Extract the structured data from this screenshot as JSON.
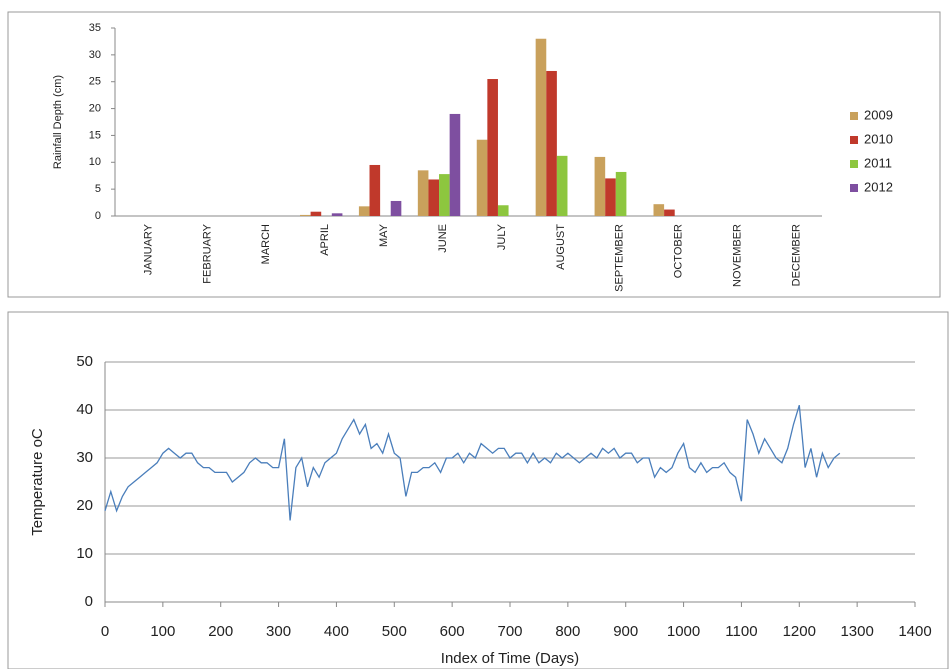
{
  "chart_data": [
    {
      "type": "bar",
      "ylabel": "Rainfall Depth (cm)",
      "categories": [
        "JANUARY",
        "FEBRUARY",
        "MARCH",
        "APRIL",
        "MAY",
        "JUNE",
        "JULY",
        "AUGUST",
        "SEPTEMBER",
        "OCTOBER",
        "NOVEMBER",
        "DECEMBER"
      ],
      "series": [
        {
          "name": "2009",
          "color": "#c9a15c",
          "values": [
            0,
            0,
            0,
            0.2,
            1.8,
            8.5,
            14.2,
            33,
            11,
            2.2,
            0,
            0
          ]
        },
        {
          "name": "2010",
          "color": "#c0392b",
          "values": [
            0,
            0,
            0,
            0.8,
            9.5,
            6.8,
            25.5,
            27,
            7,
            1.2,
            0,
            0
          ]
        },
        {
          "name": "2011",
          "color": "#8dc63f",
          "values": [
            0,
            0,
            0,
            0,
            0,
            7.8,
            2,
            11.2,
            8.2,
            0,
            0,
            0
          ]
        },
        {
          "name": "2012",
          "color": "#7e4fa0",
          "values": [
            0,
            0,
            0,
            0.5,
            2.8,
            19,
            0,
            0,
            0,
            0,
            0,
            0
          ]
        }
      ],
      "ylim": [
        0,
        35
      ],
      "yticks": [
        0,
        5,
        10,
        15,
        20,
        25,
        30,
        35
      ],
      "grid": false,
      "legend": "right"
    },
    {
      "type": "line",
      "xlabel": "Index of Time  (Days)",
      "ylabel": "Temperature oC",
      "x": [
        0,
        10,
        20,
        30,
        40,
        50,
        60,
        70,
        80,
        90,
        100,
        110,
        120,
        130,
        140,
        150,
        160,
        170,
        180,
        190,
        200,
        210,
        220,
        230,
        240,
        250,
        260,
        270,
        280,
        290,
        300,
        310,
        320,
        330,
        340,
        350,
        360,
        370,
        380,
        390,
        400,
        410,
        420,
        430,
        440,
        450,
        460,
        470,
        480,
        490,
        500,
        510,
        520,
        530,
        540,
        550,
        560,
        570,
        580,
        590,
        600,
        610,
        620,
        630,
        640,
        650,
        660,
        670,
        680,
        690,
        700,
        710,
        720,
        730,
        740,
        750,
        760,
        770,
        780,
        790,
        800,
        810,
        820,
        830,
        840,
        850,
        860,
        870,
        880,
        890,
        900,
        910,
        920,
        930,
        940,
        950,
        960,
        970,
        980,
        990,
        1000,
        1010,
        1020,
        1030,
        1040,
        1050,
        1060,
        1070,
        1080,
        1090,
        1100,
        1110,
        1120,
        1130,
        1140,
        1150,
        1160,
        1170,
        1180,
        1190,
        1200,
        1210,
        1220,
        1230,
        1240,
        1250,
        1260,
        1270
      ],
      "series": [
        {
          "name": "Temperature",
          "color": "#4a7ebb",
          "values": [
            19,
            23,
            19,
            22,
            24,
            25,
            26,
            27,
            28,
            29,
            31,
            32,
            31,
            30,
            31,
            31,
            29,
            28,
            28,
            27,
            27,
            27,
            25,
            26,
            27,
            29,
            30,
            29,
            29,
            28,
            28,
            34,
            17,
            28,
            30,
            24,
            28,
            26,
            29,
            30,
            31,
            34,
            36,
            38,
            35,
            37,
            32,
            33,
            31,
            35,
            31,
            30,
            22,
            27,
            27,
            28,
            28,
            29,
            27,
            30,
            30,
            31,
            29,
            31,
            30,
            33,
            32,
            31,
            32,
            32,
            30,
            31,
            31,
            29,
            31,
            29,
            30,
            29,
            31,
            30,
            31,
            30,
            29,
            30,
            31,
            30,
            32,
            31,
            32,
            30,
            31,
            31,
            29,
            30,
            30,
            26,
            28,
            27,
            28,
            31,
            33,
            28,
            27,
            29,
            27,
            28,
            28,
            29,
            27,
            26,
            21,
            38,
            35,
            31,
            34,
            32,
            30,
            29,
            32,
            37,
            41,
            28,
            32,
            26,
            31,
            28,
            30,
            31
          ]
        }
      ],
      "xlim": [
        0,
        1400
      ],
      "xticks": [
        0,
        100,
        200,
        300,
        400,
        500,
        600,
        700,
        800,
        900,
        1000,
        1100,
        1200,
        1300,
        1400
      ],
      "ylim": [
        0,
        50
      ],
      "yticks": [
        0,
        10,
        20,
        30,
        40,
        50
      ],
      "grid": true
    }
  ]
}
